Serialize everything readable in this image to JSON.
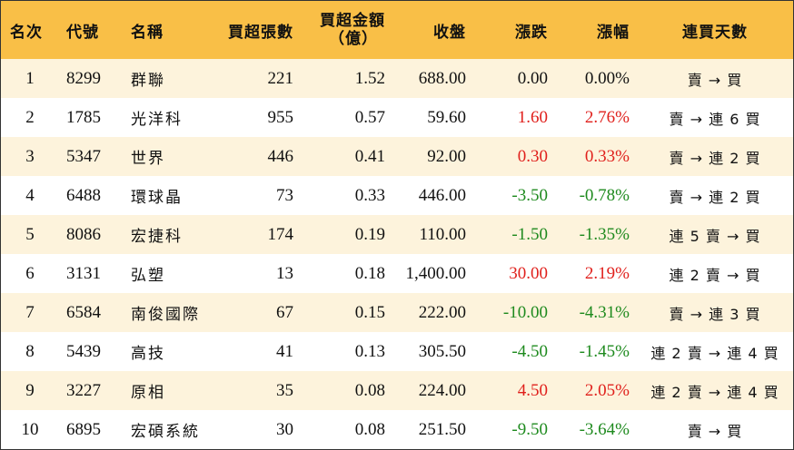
{
  "headers": {
    "rank": "名次",
    "code": "代號",
    "name": "名稱",
    "net_buy_lots": "買超張數",
    "net_buy_amount_line1": "買超金額",
    "net_buy_amount_line2": "（億）",
    "close": "收盤",
    "change": "漲跌",
    "change_pct": "漲幅",
    "streak": "連買天數"
  },
  "rows": [
    {
      "rank": "1",
      "code": "8299",
      "name": "群聯",
      "lots": "221",
      "amount": "1.52",
      "close": "688.00",
      "change": "0.00",
      "pct": "0.00%",
      "streak": "賣 → 買",
      "direction": "flat"
    },
    {
      "rank": "2",
      "code": "1785",
      "name": "光洋科",
      "lots": "955",
      "amount": "0.57",
      "close": "59.60",
      "change": "1.60",
      "pct": "2.76%",
      "streak": "賣 → 連 6 買",
      "direction": "up"
    },
    {
      "rank": "3",
      "code": "5347",
      "name": "世界",
      "lots": "446",
      "amount": "0.41",
      "close": "92.00",
      "change": "0.30",
      "pct": "0.33%",
      "streak": "賣 → 連 2 買",
      "direction": "up"
    },
    {
      "rank": "4",
      "code": "6488",
      "name": "環球晶",
      "lots": "73",
      "amount": "0.33",
      "close": "446.00",
      "change": "-3.50",
      "pct": "-0.78%",
      "streak": "賣 → 連 2 買",
      "direction": "down"
    },
    {
      "rank": "5",
      "code": "8086",
      "name": "宏捷科",
      "lots": "174",
      "amount": "0.19",
      "close": "110.00",
      "change": "-1.50",
      "pct": "-1.35%",
      "streak": "連 5 賣 → 買",
      "direction": "down"
    },
    {
      "rank": "6",
      "code": "3131",
      "name": "弘塑",
      "lots": "13",
      "amount": "0.18",
      "close": "1,400.00",
      "change": "30.00",
      "pct": "2.19%",
      "streak": "連 2 賣 → 買",
      "direction": "up"
    },
    {
      "rank": "7",
      "code": "6584",
      "name": "南俊國際",
      "lots": "67",
      "amount": "0.15",
      "close": "222.00",
      "change": "-10.00",
      "pct": "-4.31%",
      "streak": "賣 → 連 3 買",
      "direction": "down"
    },
    {
      "rank": "8",
      "code": "5439",
      "name": "高技",
      "lots": "41",
      "amount": "0.13",
      "close": "305.50",
      "change": "-4.50",
      "pct": "-1.45%",
      "streak": "連 2 賣 → 連 4 買",
      "direction": "down"
    },
    {
      "rank": "9",
      "code": "3227",
      "name": "原相",
      "lots": "35",
      "amount": "0.08",
      "close": "224.00",
      "change": "4.50",
      "pct": "2.05%",
      "streak": "連 2 賣 → 連 4 買",
      "direction": "up"
    },
    {
      "rank": "10",
      "code": "6895",
      "name": "宏碩系統",
      "lots": "30",
      "amount": "0.08",
      "close": "251.50",
      "change": "-9.50",
      "pct": "-3.64%",
      "streak": "賣 → 買",
      "direction": "down"
    }
  ],
  "colors": {
    "header_bg": "#f9bf47",
    "stripe_bg": "#fdf3dc",
    "up": "#e0201c",
    "down": "#1e8a1e",
    "flat": "#111111"
  }
}
